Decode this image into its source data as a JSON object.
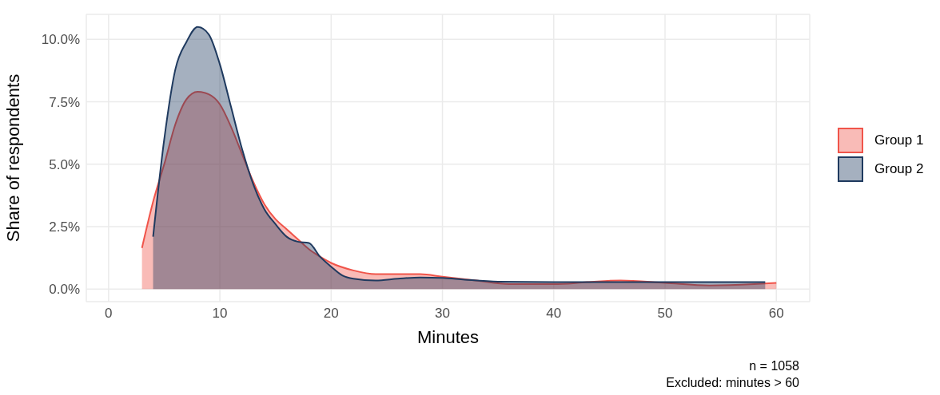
{
  "chart_data": {
    "type": "area",
    "xlabel": "Minutes",
    "ylabel": "Share of respondents",
    "xlim": [
      -2,
      63
    ],
    "xticks": [
      0,
      10,
      20,
      30,
      40,
      50,
      60
    ],
    "ylim": [
      -0.5,
      11
    ],
    "yticks": [
      {
        "value": 0,
        "label": "0.0%"
      },
      {
        "value": 2.5,
        "label": "2.5%"
      },
      {
        "value": 5,
        "label": "5.0%"
      },
      {
        "value": 7.5,
        "label": "7.5%"
      },
      {
        "value": 10,
        "label": "10.0%"
      }
    ],
    "grid": true,
    "legend": "right",
    "series": [
      {
        "name": "Group 1",
        "color": "#f0544a",
        "x": [
          3,
          4,
          5,
          6,
          7,
          8,
          9,
          10,
          11,
          12,
          13,
          14,
          15,
          16,
          17,
          18,
          19,
          20,
          22,
          24,
          28,
          30,
          33,
          36,
          40,
          43,
          46,
          50,
          54,
          58,
          60
        ],
        "values": [
          1.65,
          3.5,
          5.0,
          6.6,
          7.6,
          7.9,
          7.8,
          7.4,
          6.5,
          5.4,
          4.3,
          3.4,
          2.8,
          2.4,
          2.0,
          1.6,
          1.3,
          1.05,
          0.75,
          0.6,
          0.6,
          0.5,
          0.35,
          0.2,
          0.2,
          0.28,
          0.35,
          0.25,
          0.15,
          0.2,
          0.25
        ]
      },
      {
        "name": "Group 2",
        "color": "#1f3a5f",
        "x": [
          4,
          5,
          6,
          7,
          8,
          9,
          10,
          11,
          12,
          13,
          14,
          15,
          16,
          17,
          18,
          19,
          20,
          21,
          22,
          24,
          26,
          28,
          30,
          32,
          35,
          40,
          50,
          59
        ],
        "values": [
          2.1,
          6.0,
          8.8,
          9.9,
          10.5,
          10.2,
          9.0,
          7.3,
          5.6,
          4.2,
          3.2,
          2.6,
          2.1,
          1.9,
          1.85,
          1.3,
          0.9,
          0.55,
          0.42,
          0.35,
          0.42,
          0.47,
          0.45,
          0.38,
          0.3,
          0.28,
          0.28,
          0.28
        ]
      }
    ],
    "annotations": [
      "n = 1058",
      "Excluded: minutes > 60"
    ]
  }
}
